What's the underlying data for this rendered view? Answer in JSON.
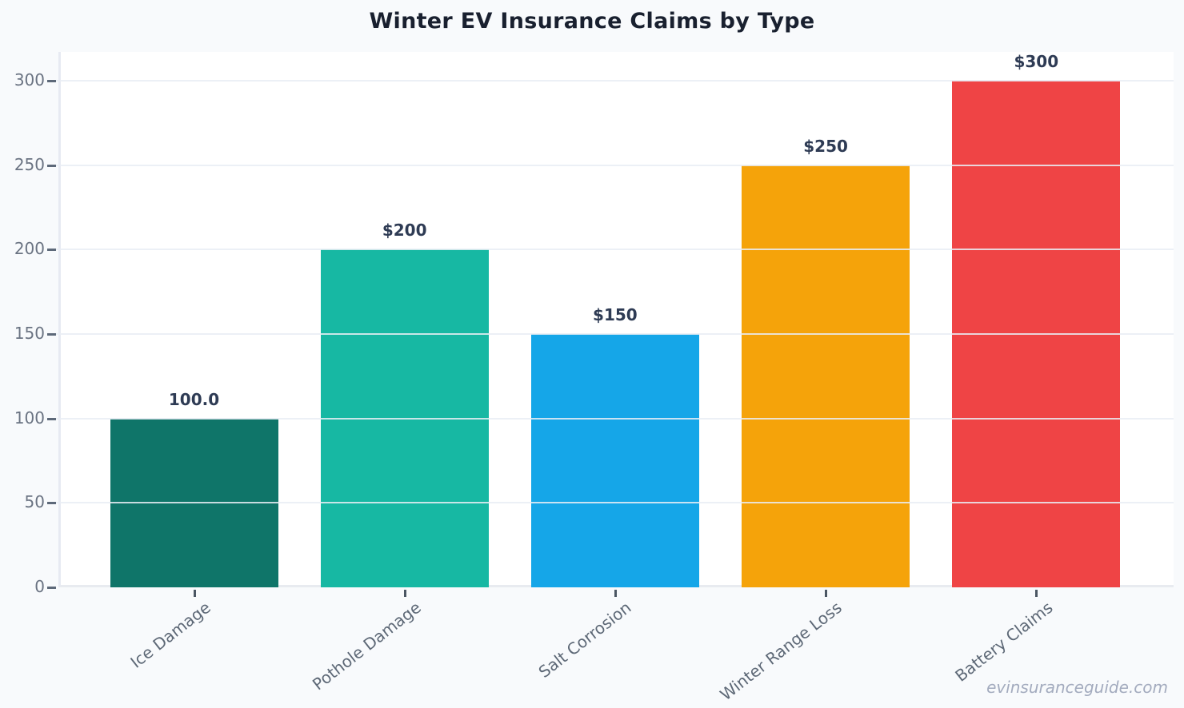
{
  "title": "Winter EV Insurance Claims by Type",
  "watermark": "evinsuranceguide.com",
  "chart_data": {
    "type": "bar",
    "title": "Winter EV Insurance Claims by Type",
    "categories": [
      "Ice Damage",
      "Pothole Damage",
      "Salt Corrosion",
      "Winter Range Loss",
      "Battery Claims"
    ],
    "values": [
      100,
      200,
      150,
      250,
      300
    ],
    "bar_labels": [
      "100.0",
      "$200",
      "$150",
      "$250",
      "$300"
    ],
    "bar_colors": [
      "#0F7569",
      "#17B8A3",
      "#15A6E8",
      "#F5A30A",
      "#EF4445"
    ],
    "xlabel": "",
    "ylabel": "",
    "yticks": [
      0,
      50,
      100,
      150,
      200,
      250,
      300
    ],
    "ylim": [
      0,
      317
    ],
    "grid": true,
    "grid_axis": "y",
    "legend": null,
    "background_color": "#F8FAFC",
    "plot_background_color": "#FFFFFF",
    "title_color": "#19202F",
    "bar_label_color": "#2E3B54",
    "tick_label_color": "#6A7382",
    "xtick_label_color": "#5D6876",
    "xtick_rotation_deg": -38
  }
}
